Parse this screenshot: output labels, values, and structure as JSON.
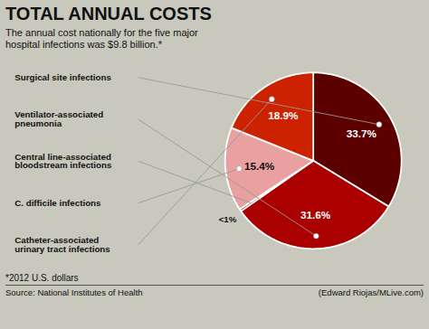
{
  "chart_data": {
    "type": "pie",
    "title": "TOTAL ANNUAL COSTS",
    "subtitle": "The annual cost nationally for the five major\nhospital infections was $9.8 billion.*",
    "footnote": "*2012 U.S. dollars",
    "source": "Source: National Institutes of Health",
    "credit": "(Edward Riojas/MLive.com)",
    "categories": [
      "Surgical site infections",
      "Ventilator-associated\npneumonia",
      "Central line-associated\nbloodstream infections",
      "C. difficile infections",
      "Catheter-associated\nurinary tract infections"
    ],
    "values": [
      33.7,
      31.6,
      0.4,
      15.4,
      18.9
    ],
    "value_labels": [
      "33.7%",
      "31.6%",
      "<1%",
      "15.4%",
      "18.9%"
    ],
    "data_labels": true,
    "colors": [
      "#5c0000",
      "#aa0000",
      "#7a1a1a",
      "#e8a0a0",
      "#cc2200"
    ]
  }
}
